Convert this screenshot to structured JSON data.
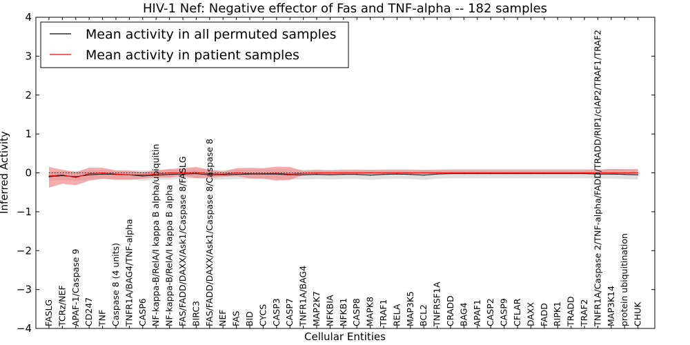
{
  "chart_data": {
    "type": "line",
    "title": "HIV-1 Nef: Negative effector of Fas and TNF-alpha -- 182 samples",
    "xlabel": "Cellular Entities",
    "ylabel": "Inferred Activity",
    "ylim": [
      -4,
      4
    ],
    "yticks": [
      -4,
      -3,
      -2,
      -1,
      0,
      1,
      2,
      3,
      4
    ],
    "ytick_labels": [
      "−4",
      "−3",
      "−2",
      "−1",
      "0",
      "1",
      "2",
      "3",
      "4"
    ],
    "legend_position": "top-left",
    "categories": [
      "FASLG",
      "TCRz/NEF",
      "APAF-1/Caspase 9",
      "CD247",
      "TNF",
      "Caspase 8 (4 units)",
      "TNFR1A/BAG4/TNF-alpha",
      "CASP6",
      "NF-kappa-B/RelA/I kappa B alpha/ubiquitin",
      "NF-kappa-B/RelA/I kappa B alpha",
      "FAS/FADD/DAXX/Ask1/Caspase 8/FASLG",
      "BIRC3",
      "FAS/FADD/DAXX/Ask1/Caspase 8/Caspase 8",
      "NEF",
      "FAS",
      "BID",
      "CYCS",
      "CASP3",
      "CASP7",
      "TNFR1A/BAG4",
      "MAP2K7",
      "NFKBIA",
      "NFKB1",
      "CASP8",
      "MAPK8",
      "TRAF1",
      "RELA",
      "MAP3K5",
      "BCL2",
      "TNFRSF1A",
      "CRADD",
      "BAG4",
      "APAF1",
      "CASP2",
      "CASP9",
      "CFLAR",
      "DAXX",
      "FADD",
      "RIPK1",
      "TRADD",
      "TRAF2",
      "TNFR1A/Caspase 2/TNF-alpha/FADD/TRADD/RIP1/cIAP2/TRAF1/TRAF2",
      "MAP3K14",
      "protein ubiquitination",
      "CHUK"
    ],
    "series": [
      {
        "name": "Mean activity in all permuted samples",
        "color": "#000000",
        "band_color": "#cccccc",
        "values": [
          -0.1,
          -0.07,
          -0.1,
          -0.05,
          -0.03,
          -0.04,
          -0.05,
          -0.08,
          -0.06,
          -0.04,
          -0.03,
          -0.02,
          -0.05,
          -0.05,
          -0.04,
          -0.03,
          -0.03,
          -0.03,
          -0.05,
          -0.05,
          -0.04,
          -0.05,
          -0.04,
          -0.04,
          -0.06,
          -0.04,
          -0.03,
          -0.04,
          -0.06,
          -0.03,
          -0.02,
          -0.02,
          -0.02,
          -0.02,
          -0.02,
          -0.02,
          -0.02,
          -0.02,
          -0.02,
          -0.02,
          -0.02,
          -0.03,
          -0.03,
          -0.04,
          -0.05
        ],
        "lower": [
          -0.2,
          -0.18,
          -0.2,
          -0.18,
          -0.15,
          -0.16,
          -0.17,
          -0.2,
          -0.18,
          -0.17,
          -0.15,
          -0.14,
          -0.17,
          -0.17,
          -0.16,
          -0.16,
          -0.15,
          -0.16,
          -0.17,
          -0.17,
          -0.16,
          -0.17,
          -0.16,
          -0.16,
          -0.18,
          -0.16,
          -0.15,
          -0.16,
          -0.18,
          -0.15,
          -0.14,
          -0.14,
          -0.14,
          -0.14,
          -0.14,
          -0.14,
          -0.14,
          -0.14,
          -0.14,
          -0.14,
          -0.14,
          -0.15,
          -0.15,
          -0.16,
          -0.17
        ],
        "upper": [
          0.04,
          0.05,
          0.05,
          0.06,
          0.07,
          0.07,
          0.07,
          0.06,
          0.07,
          0.08,
          0.08,
          0.09,
          0.07,
          0.07,
          0.08,
          0.08,
          0.09,
          0.09,
          0.08,
          0.08,
          0.09,
          0.08,
          0.09,
          0.09,
          0.08,
          0.09,
          0.1,
          0.09,
          0.08,
          0.09,
          0.1,
          0.1,
          0.1,
          0.1,
          0.1,
          0.1,
          0.1,
          0.1,
          0.1,
          0.1,
          0.1,
          0.09,
          0.09,
          0.08,
          0.07
        ]
      },
      {
        "name": "Mean activity in patient samples",
        "color": "#ff0000",
        "band_color": "#f08080",
        "values": [
          -0.08,
          -0.05,
          -0.12,
          -0.02,
          0.0,
          -0.03,
          -0.05,
          -0.05,
          -0.03,
          0.0,
          0.0,
          0.01,
          -0.02,
          -0.03,
          0.0,
          -0.02,
          -0.02,
          -0.01,
          -0.03,
          -0.01,
          0.0,
          0.0,
          0.0,
          0.0,
          0.0,
          0.0,
          0.0,
          0.0,
          0.0,
          0.0,
          0.0,
          0.0,
          0.0,
          0.0,
          0.0,
          0.0,
          0.0,
          0.0,
          0.0,
          0.0,
          0.0,
          0.0,
          0.0,
          0.0,
          0.0
        ],
        "lower": [
          -0.38,
          -0.28,
          -0.32,
          -0.2,
          -0.15,
          -0.18,
          -0.18,
          -0.15,
          -0.12,
          -0.12,
          -0.08,
          -0.14,
          -0.12,
          -0.1,
          -0.08,
          -0.14,
          -0.15,
          -0.2,
          -0.18,
          -0.06,
          -0.04,
          -0.05,
          -0.03,
          -0.03,
          -0.03,
          -0.03,
          -0.03,
          -0.03,
          -0.03,
          -0.03,
          -0.03,
          -0.03,
          -0.03,
          -0.03,
          -0.03,
          -0.03,
          -0.03,
          -0.03,
          -0.03,
          -0.03,
          -0.03,
          -0.03,
          -0.03,
          -0.03,
          -0.03
        ],
        "upper": [
          0.15,
          0.08,
          0.02,
          0.13,
          0.13,
          0.06,
          0.05,
          0.02,
          0.06,
          0.1,
          0.12,
          0.15,
          0.08,
          0.03,
          0.12,
          0.13,
          0.12,
          0.16,
          0.15,
          0.05,
          0.07,
          0.06,
          0.07,
          0.07,
          0.07,
          0.07,
          0.07,
          0.07,
          0.07,
          0.07,
          0.07,
          0.07,
          0.07,
          0.07,
          0.07,
          0.07,
          0.07,
          0.07,
          0.07,
          0.07,
          0.07,
          0.08,
          0.1,
          0.1,
          0.1
        ]
      }
    ]
  }
}
